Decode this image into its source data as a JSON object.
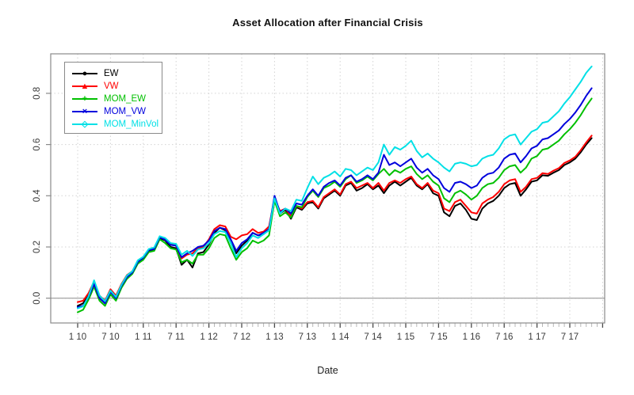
{
  "chart_data": {
    "type": "line",
    "title": "Asset Allocation after Financial Crisis",
    "xlabel": "Date",
    "ylabel": "",
    "x_frequency": "monthly",
    "x_start": "Jan 2010",
    "x_end": "Nov 2017",
    "x_tick_labels": [
      "1 10",
      "7 10",
      "1 11",
      "7 11",
      "1 12",
      "7 12",
      "1 13",
      "7 13",
      "1 14",
      "7 14",
      "1 15",
      "7 15",
      "1 16",
      "7 16",
      "1 17",
      "7 17"
    ],
    "y_tick_labels": [
      "0.0",
      "0.2",
      "0.4",
      "0.6",
      "0.8"
    ],
    "y_ticks": [
      0.0,
      0.2,
      0.4,
      0.6,
      0.8
    ],
    "ylim": [
      -0.1,
      0.95
    ],
    "grid": {
      "shown": true,
      "style": "dotted",
      "color": "#d3d3d3"
    },
    "zero_line": {
      "shown": true,
      "color": "#9a9a9a"
    },
    "legend_position": "topleft",
    "series": [
      {
        "name": "EW",
        "color": "#000000",
        "marker": "circle",
        "values": [
          -0.03,
          -0.02,
          0.015,
          0.06,
          0.0,
          -0.02,
          0.03,
          0.0,
          0.05,
          0.085,
          0.1,
          0.14,
          0.155,
          0.185,
          0.19,
          0.235,
          0.225,
          0.2,
          0.195,
          0.13,
          0.15,
          0.12,
          0.175,
          0.18,
          0.21,
          0.255,
          0.275,
          0.265,
          0.215,
          0.175,
          0.205,
          0.225,
          0.255,
          0.245,
          0.25,
          0.27,
          0.385,
          0.33,
          0.345,
          0.31,
          0.355,
          0.345,
          0.37,
          0.375,
          0.35,
          0.39,
          0.405,
          0.42,
          0.4,
          0.44,
          0.45,
          0.42,
          0.43,
          0.445,
          0.425,
          0.44,
          0.41,
          0.44,
          0.455,
          0.44,
          0.455,
          0.47,
          0.44,
          0.425,
          0.445,
          0.41,
          0.4,
          0.335,
          0.32,
          0.36,
          0.37,
          0.345,
          0.31,
          0.305,
          0.35,
          0.37,
          0.38,
          0.4,
          0.43,
          0.445,
          0.45,
          0.4,
          0.425,
          0.455,
          0.46,
          0.48,
          0.478,
          0.49,
          0.5,
          0.52,
          0.53,
          0.545,
          0.57,
          0.6,
          0.625
        ]
      },
      {
        "name": "VW",
        "color": "#ff0000",
        "marker": "triangle",
        "values": [
          -0.015,
          -0.01,
          0.02,
          0.065,
          0.01,
          -0.01,
          0.035,
          0.01,
          0.055,
          0.09,
          0.105,
          0.145,
          0.16,
          0.19,
          0.195,
          0.24,
          0.23,
          0.21,
          0.205,
          0.155,
          0.17,
          0.175,
          0.195,
          0.2,
          0.23,
          0.27,
          0.285,
          0.28,
          0.24,
          0.23,
          0.245,
          0.25,
          0.27,
          0.255,
          0.26,
          0.28,
          0.39,
          0.34,
          0.35,
          0.32,
          0.36,
          0.35,
          0.375,
          0.38,
          0.355,
          0.395,
          0.41,
          0.425,
          0.405,
          0.445,
          0.455,
          0.43,
          0.44,
          0.45,
          0.43,
          0.45,
          0.42,
          0.45,
          0.46,
          0.45,
          0.465,
          0.475,
          0.445,
          0.43,
          0.45,
          0.42,
          0.41,
          0.35,
          0.34,
          0.375,
          0.385,
          0.36,
          0.335,
          0.33,
          0.37,
          0.385,
          0.395,
          0.415,
          0.445,
          0.46,
          0.465,
          0.415,
          0.435,
          0.465,
          0.47,
          0.488,
          0.485,
          0.498,
          0.508,
          0.528,
          0.538,
          0.552,
          0.578,
          0.608,
          0.635
        ]
      },
      {
        "name": "MOM_EW",
        "color": "#00c000",
        "marker": "plus",
        "values": [
          -0.055,
          -0.045,
          -0.005,
          0.045,
          -0.01,
          -0.03,
          0.015,
          -0.01,
          0.04,
          0.075,
          0.095,
          0.135,
          0.15,
          0.18,
          0.185,
          0.23,
          0.215,
          0.195,
          0.19,
          0.14,
          0.15,
          0.135,
          0.17,
          0.17,
          0.195,
          0.235,
          0.25,
          0.245,
          0.195,
          0.15,
          0.18,
          0.195,
          0.225,
          0.215,
          0.225,
          0.245,
          0.38,
          0.32,
          0.335,
          0.315,
          0.36,
          0.355,
          0.395,
          0.42,
          0.395,
          0.43,
          0.44,
          0.455,
          0.435,
          0.465,
          0.48,
          0.45,
          0.46,
          0.475,
          0.46,
          0.485,
          0.505,
          0.48,
          0.5,
          0.49,
          0.505,
          0.515,
          0.485,
          0.465,
          0.48,
          0.455,
          0.44,
          0.39,
          0.375,
          0.41,
          0.42,
          0.405,
          0.385,
          0.4,
          0.43,
          0.445,
          0.45,
          0.47,
          0.5,
          0.515,
          0.52,
          0.49,
          0.51,
          0.545,
          0.555,
          0.58,
          0.585,
          0.6,
          0.615,
          0.64,
          0.66,
          0.685,
          0.715,
          0.75,
          0.78
        ]
      },
      {
        "name": "MOM_VW",
        "color": "#0000dd",
        "marker": "cross",
        "values": [
          -0.035,
          -0.03,
          0.005,
          0.055,
          0.0,
          -0.02,
          0.025,
          0.0,
          0.048,
          0.082,
          0.1,
          0.142,
          0.158,
          0.188,
          0.192,
          0.238,
          0.228,
          0.208,
          0.205,
          0.16,
          0.175,
          0.185,
          0.2,
          0.205,
          0.225,
          0.262,
          0.275,
          0.27,
          0.23,
          0.185,
          0.215,
          0.23,
          0.255,
          0.245,
          0.255,
          0.27,
          0.4,
          0.335,
          0.35,
          0.33,
          0.37,
          0.365,
          0.4,
          0.425,
          0.4,
          0.435,
          0.45,
          0.46,
          0.44,
          0.47,
          0.48,
          0.455,
          0.465,
          0.48,
          0.465,
          0.49,
          0.56,
          0.52,
          0.53,
          0.515,
          0.53,
          0.545,
          0.51,
          0.49,
          0.505,
          0.48,
          0.465,
          0.43,
          0.415,
          0.45,
          0.455,
          0.445,
          0.43,
          0.44,
          0.47,
          0.485,
          0.49,
          0.51,
          0.545,
          0.56,
          0.565,
          0.53,
          0.555,
          0.585,
          0.595,
          0.62,
          0.625,
          0.64,
          0.655,
          0.68,
          0.7,
          0.725,
          0.755,
          0.79,
          0.82
        ]
      },
      {
        "name": "MOM_MinVol",
        "color": "#00e0e6",
        "marker": "diamond",
        "values": [
          -0.04,
          -0.032,
          0.008,
          0.07,
          0.01,
          -0.012,
          0.03,
          0.005,
          0.052,
          0.088,
          0.105,
          0.148,
          0.162,
          0.192,
          0.198,
          0.242,
          0.235,
          0.215,
          0.212,
          0.17,
          0.185,
          0.165,
          0.19,
          0.195,
          0.215,
          0.25,
          0.262,
          0.258,
          0.215,
          0.16,
          0.195,
          0.215,
          0.245,
          0.235,
          0.25,
          0.265,
          0.39,
          0.33,
          0.35,
          0.34,
          0.385,
          0.38,
          0.43,
          0.475,
          0.445,
          0.47,
          0.48,
          0.495,
          0.475,
          0.505,
          0.5,
          0.48,
          0.495,
          0.51,
          0.5,
          0.53,
          0.6,
          0.56,
          0.59,
          0.58,
          0.595,
          0.615,
          0.575,
          0.55,
          0.565,
          0.545,
          0.53,
          0.51,
          0.495,
          0.525,
          0.53,
          0.525,
          0.515,
          0.52,
          0.545,
          0.555,
          0.56,
          0.585,
          0.62,
          0.635,
          0.64,
          0.6,
          0.625,
          0.65,
          0.66,
          0.685,
          0.69,
          0.71,
          0.73,
          0.76,
          0.785,
          0.815,
          0.845,
          0.88,
          0.905
        ]
      }
    ]
  }
}
